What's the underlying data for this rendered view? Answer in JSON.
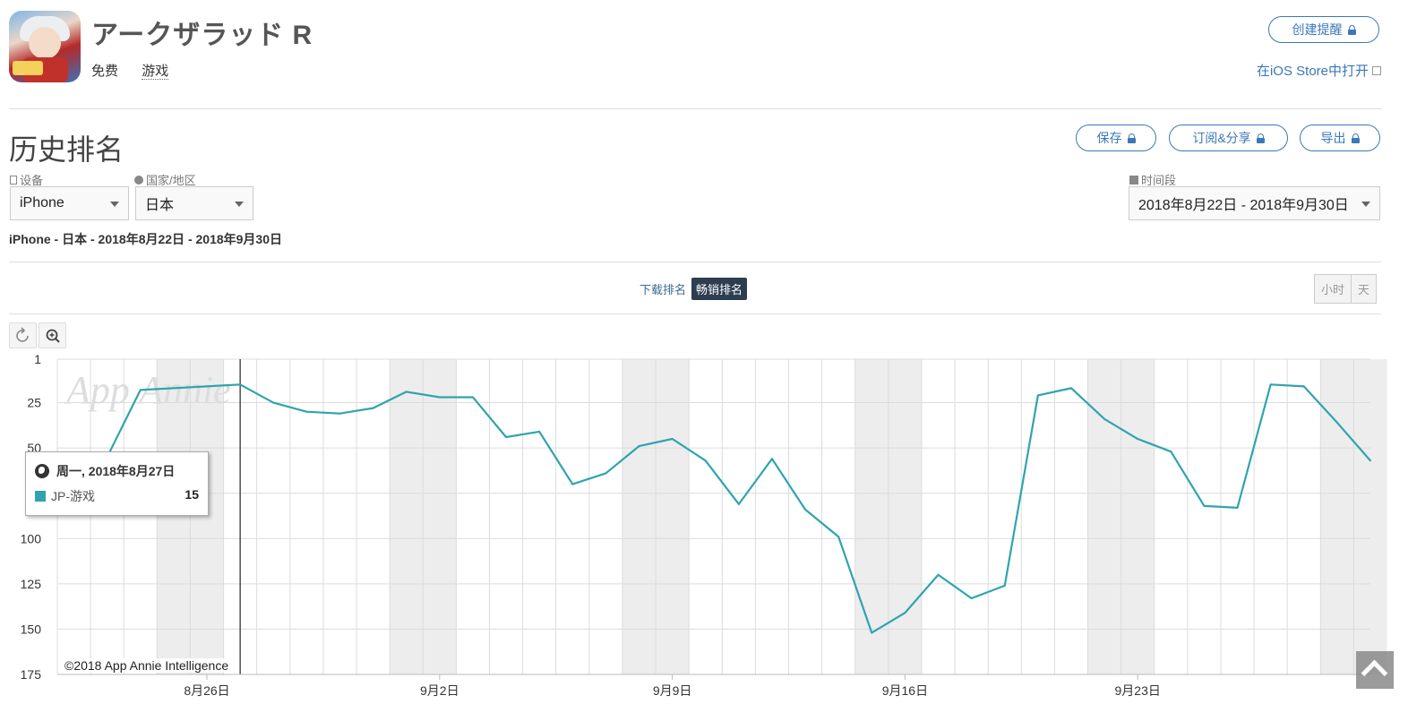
{
  "app": {
    "name": "アークザラッド R",
    "price": "免费",
    "category": "游戏",
    "alert_button": "创建提醒",
    "store_link": "在iOS Store中打开"
  },
  "section": {
    "title": "历史排名",
    "save_button": "保存",
    "subscribe_button": "订阅&分享",
    "export_button": "导出"
  },
  "filters": {
    "device_label": "设备",
    "device_value": "iPhone",
    "country_label": "国家/地区",
    "country_value": "日本",
    "period_label": "时间段",
    "period_value": "2018年8月22日 - 2018年9月30日"
  },
  "summary": "iPhone - 日本 - 2018年8月22日 - 2018年9月30日",
  "rank_toggle": {
    "download": "下载排名",
    "grossing": "畅销排名",
    "active": "grossing"
  },
  "granularity": {
    "hour": "小时",
    "day": "天"
  },
  "colors": {
    "accent": "#3a78b8",
    "series": "#2fa4ae",
    "weekend_band": "#ededed"
  },
  "tooltip": {
    "date": "周一, 2018年8月27日",
    "series": "JP-游戏",
    "value": "15"
  },
  "watermark": "App Annie",
  "copyright": "©2018 App Annie Intelligence",
  "chart_data": {
    "type": "line",
    "x_ticks": [
      "8月26日",
      "9月2日",
      "9月9日",
      "9月16日",
      "9月23日"
    ],
    "y_ticks": [
      "1",
      "25",
      "50",
      "75",
      "100",
      "125",
      "150",
      "175"
    ],
    "ylim": [
      175,
      1
    ],
    "y_inverted": true,
    "grid": true,
    "series": [
      {
        "name": "JP-游戏",
        "x": [
          "2018-08-22",
          "2018-08-23",
          "2018-08-24",
          "2018-08-25",
          "2018-08-26",
          "2018-08-27",
          "2018-08-28",
          "2018-08-29",
          "2018-08-30",
          "2018-08-31",
          "2018-09-01",
          "2018-09-02",
          "2018-09-03",
          "2018-09-04",
          "2018-09-05",
          "2018-09-06",
          "2018-09-07",
          "2018-09-08",
          "2018-09-09",
          "2018-09-10",
          "2018-09-11",
          "2018-09-12",
          "2018-09-13",
          "2018-09-14",
          "2018-09-15",
          "2018-09-16",
          "2018-09-17",
          "2018-09-18",
          "2018-09-19",
          "2018-09-20",
          "2018-09-21",
          "2018-09-22",
          "2018-09-23",
          "2018-09-24",
          "2018-09-25",
          "2018-09-26",
          "2018-09-27",
          "2018-09-28",
          "2018-09-29",
          "2018-09-30"
        ],
        "values": [
          80,
          55,
          18,
          17,
          16,
          15,
          25,
          30,
          31,
          28,
          19,
          22,
          22,
          44,
          41,
          70,
          64,
          49,
          45,
          57,
          81,
          56,
          84,
          99,
          152,
          141,
          120,
          133,
          126,
          21,
          17,
          34,
          45,
          52,
          82,
          83,
          15,
          16,
          36,
          57
        ]
      }
    ]
  }
}
